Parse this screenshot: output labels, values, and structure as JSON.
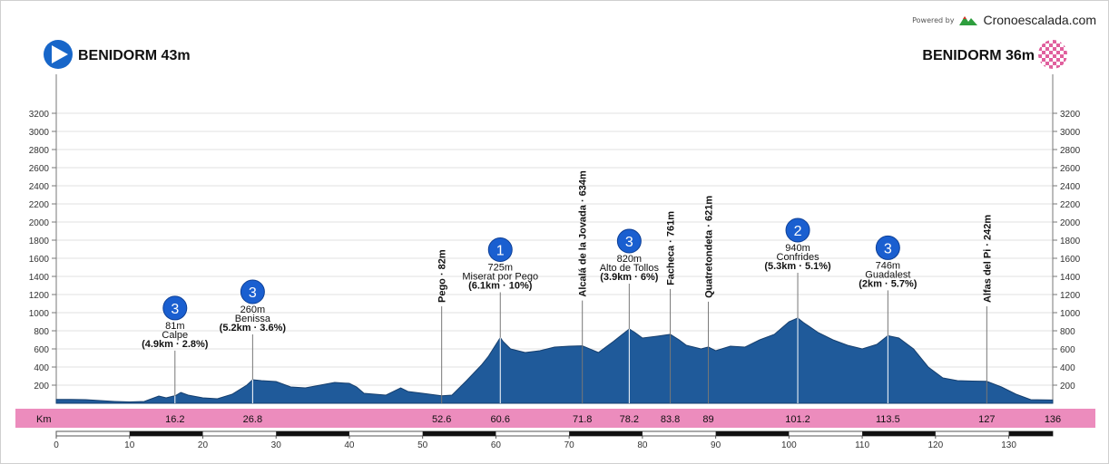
{
  "branding": {
    "powered_by": "Powered by",
    "site": "Cronoescalada.com"
  },
  "start": {
    "label": "BENIDORM 43m"
  },
  "finish": {
    "label": "BENIDORM 36m"
  },
  "km_label": "Km",
  "colors": {
    "profile": "#1f5a9a",
    "profile_edge": "#163f6e",
    "band": "#ec8cbd",
    "badge": "#1a5fd0",
    "start_icon": "#1766c9"
  },
  "chart_data": {
    "type": "area",
    "x_range": [
      0,
      136
    ],
    "y_range": [
      0,
      3300
    ],
    "y_ticks": [
      200,
      400,
      600,
      800,
      1000,
      1200,
      1400,
      1600,
      1800,
      2000,
      2200,
      2400,
      2600,
      2800,
      3000,
      3200
    ],
    "x_ticks": [
      0,
      10,
      20,
      30,
      40,
      50,
      60,
      70,
      80,
      90,
      100,
      110,
      120,
      130
    ],
    "km_markers": [
      "16.2",
      "26.8",
      "52.6",
      "60.6",
      "71.8",
      "78.2",
      "83.8",
      "89",
      "101.2",
      "113.5",
      "127",
      "136"
    ],
    "profile": [
      [
        0,
        43
      ],
      [
        2,
        43
      ],
      [
        4,
        40
      ],
      [
        6,
        30
      ],
      [
        8,
        20
      ],
      [
        10,
        15
      ],
      [
        12,
        20
      ],
      [
        13,
        50
      ],
      [
        14,
        80
      ],
      [
        15,
        60
      ],
      [
        16,
        80
      ],
      [
        16.2,
        81
      ],
      [
        17,
        120
      ],
      [
        18,
        90
      ],
      [
        20,
        60
      ],
      [
        22,
        50
      ],
      [
        24,
        100
      ],
      [
        26,
        200
      ],
      [
        26.8,
        260
      ],
      [
        28,
        250
      ],
      [
        30,
        240
      ],
      [
        32,
        180
      ],
      [
        34,
        170
      ],
      [
        36,
        200
      ],
      [
        38,
        230
      ],
      [
        40,
        220
      ],
      [
        41,
        180
      ],
      [
        42,
        110
      ],
      [
        45,
        90
      ],
      [
        47,
        170
      ],
      [
        48,
        130
      ],
      [
        50,
        110
      ],
      [
        52.6,
        82
      ],
      [
        54,
        90
      ],
      [
        56,
        250
      ],
      [
        58,
        420
      ],
      [
        59,
        520
      ],
      [
        60.6,
        725
      ],
      [
        61,
        680
      ],
      [
        62,
        600
      ],
      [
        64,
        560
      ],
      [
        66,
        580
      ],
      [
        68,
        620
      ],
      [
        70,
        630
      ],
      [
        71.8,
        634
      ],
      [
        74,
        560
      ],
      [
        76,
        680
      ],
      [
        78.2,
        820
      ],
      [
        79,
        780
      ],
      [
        80,
        720
      ],
      [
        82,
        740
      ],
      [
        83.8,
        761
      ],
      [
        85,
        700
      ],
      [
        86,
        640
      ],
      [
        88,
        600
      ],
      [
        89,
        621
      ],
      [
        90,
        580
      ],
      [
        92,
        630
      ],
      [
        94,
        620
      ],
      [
        96,
        700
      ],
      [
        98,
        760
      ],
      [
        99,
        830
      ],
      [
        100,
        900
      ],
      [
        101.2,
        940
      ],
      [
        102,
        890
      ],
      [
        104,
        780
      ],
      [
        106,
        700
      ],
      [
        108,
        640
      ],
      [
        110,
        600
      ],
      [
        112,
        650
      ],
      [
        113.5,
        746
      ],
      [
        115,
        720
      ],
      [
        117,
        600
      ],
      [
        119,
        400
      ],
      [
        121,
        280
      ],
      [
        123,
        250
      ],
      [
        125,
        245
      ],
      [
        127,
        242
      ],
      [
        129,
        180
      ],
      [
        131,
        100
      ],
      [
        133,
        40
      ],
      [
        136,
        36
      ]
    ],
    "climbs": [
      {
        "x": 16.2,
        "cat": "3",
        "elev": "81m",
        "name": "Calpe",
        "stats": "(4.9km · 2.8%)"
      },
      {
        "x": 26.8,
        "cat": "3",
        "elev": "260m",
        "name": "Benissa",
        "stats": "(5.2km · 3.6%)"
      },
      {
        "x": 60.6,
        "cat": "1",
        "elev": "725m",
        "name": "Miserat por Pego",
        "stats": "(6.1km · 10%)"
      },
      {
        "x": 78.2,
        "cat": "3",
        "elev": "820m",
        "name": "Alto de Tollos",
        "stats": "(3.9km · 6%)"
      },
      {
        "x": 101.2,
        "cat": "2",
        "elev": "940m",
        "name": "Confrides",
        "stats": "(5.3km · 5.1%)"
      },
      {
        "x": 113.5,
        "cat": "3",
        "elev": "746m",
        "name": "Guadalest",
        "stats": "(2km · 5.7%)"
      }
    ],
    "points": [
      {
        "x": 52.6,
        "label": "Pego · 82m"
      },
      {
        "x": 71.8,
        "label": "Alcalá de la Jovada · 634m"
      },
      {
        "x": 83.8,
        "label": "Facheca · 761m"
      },
      {
        "x": 89,
        "label": "Quatretondeta · 621m"
      },
      {
        "x": 127,
        "label": "Alfas del Pi · 242m"
      }
    ]
  }
}
